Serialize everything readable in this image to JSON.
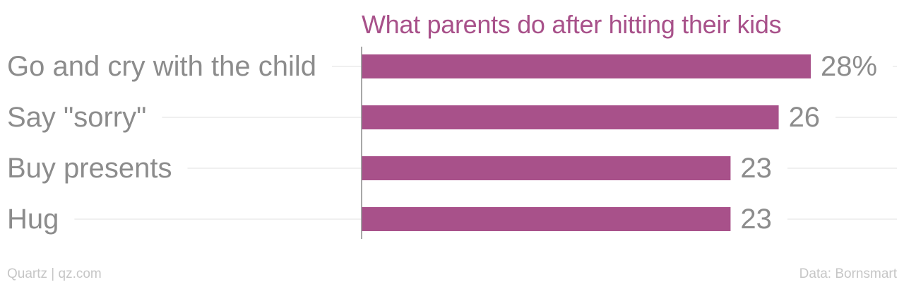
{
  "chart_data": {
    "type": "bar",
    "orientation": "horizontal",
    "title": "What parents do after hitting their kids",
    "categories": [
      "Go and cry with the child",
      "Say \"sorry\"",
      "Buy presents",
      "Hug"
    ],
    "values": [
      28,
      26,
      23,
      23
    ],
    "value_labels": [
      "28%",
      "26",
      "23",
      "23"
    ],
    "unit": "%",
    "xlim": [
      0,
      28
    ],
    "grid": true,
    "legend": "none",
    "colors": {
      "bar": "#A8518A",
      "title": "#A8518A",
      "category_label": "#8c8c8c",
      "value_label": "#8c8c8c",
      "grid": "#ebebeb",
      "axis": "#8c8c8c",
      "footer": "#c6c6c6"
    }
  },
  "footer": {
    "source": "Quartz | qz.com",
    "credit": "Data: Bornsmart"
  }
}
